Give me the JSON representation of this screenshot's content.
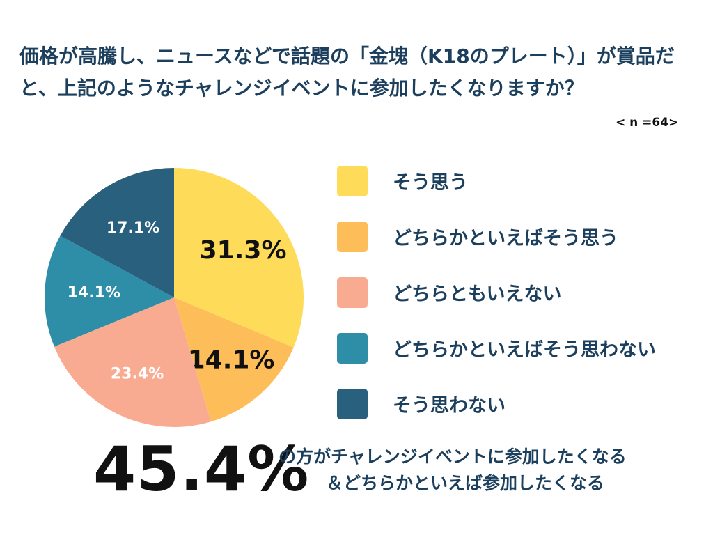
{
  "title": "価格が高騰し、ニュースなどで話題の「金塊（K18のプレート）」が賞品だと、上記のようなチャレンジイベントに参加したくなりますか？",
  "sample_size": "< n =64>",
  "summary": {
    "big_value": "45.4%",
    "line1": "の方がチャレンジイベントに参加したくなる",
    "line2": "＆どちらかといえば参加したくなる"
  },
  "chart_data": {
    "type": "pie",
    "title": "価格が高騰し、ニュースなどで話題の「金塊（K18のプレート）」が賞品だと、上記のようなチャレンジイベントに参加したくなりますか？",
    "categories": [
      "そう思う",
      "どちらかといえばそう思う",
      "どちらともいえない",
      "どちらかといえばそう思わない",
      "そう思わない"
    ],
    "values": [
      31.3,
      14.1,
      23.4,
      14.1,
      17.1
    ],
    "labels": [
      "31.3%",
      "14.1%",
      "23.4%",
      "14.1%",
      "17.1%"
    ],
    "colors": [
      "#fedc5a",
      "#fdbd59",
      "#f9ab92",
      "#2e8ea7",
      "#28607e"
    ],
    "label_colors": [
      "#111111",
      "#111111",
      "#ffffff",
      "#ffffff",
      "#ffffff"
    ],
    "legend_placement": "right"
  }
}
